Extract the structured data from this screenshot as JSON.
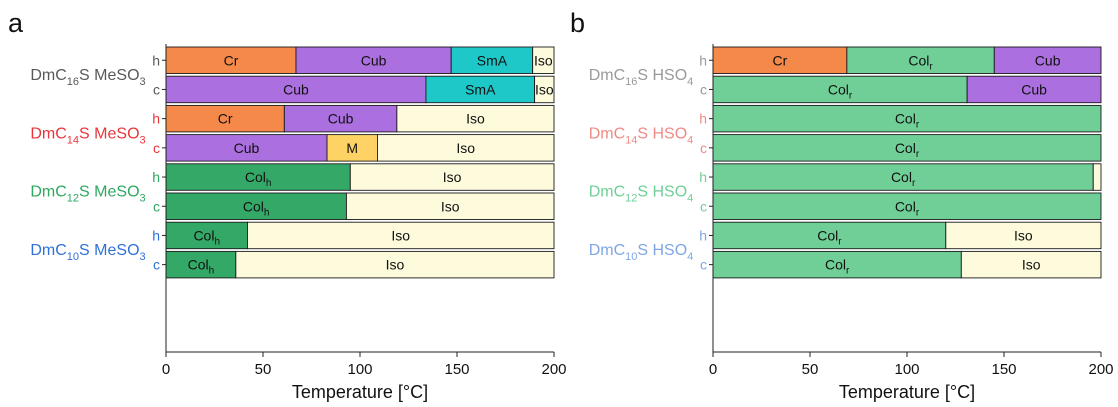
{
  "colors": {
    "Cr": "#f4894a",
    "Cub": "#ab6fdf",
    "SmA": "#1ec8c8",
    "M": "#fed265",
    "Iso": "#fdfbdc",
    "Colh": "#34a867",
    "Colr": "#6fcf97"
  },
  "chart_data": [
    {
      "type": "bar",
      "panel_label": "a",
      "xlabel": "Temperature [°C]",
      "xlim": [
        0,
        200
      ],
      "xticks": [
        0,
        50,
        100,
        150,
        200
      ],
      "groups": [
        {
          "compound": "DmC16S MeSO3",
          "color": "#595959",
          "rows": [
            {
              "label": "h",
              "segments": [
                {
                  "phase": "Cr",
                  "text": "Cr",
                  "start": 0,
                  "end": 67
                },
                {
                  "phase": "Cub",
                  "text": "Cub",
                  "start": 67,
                  "end": 147
                },
                {
                  "phase": "SmA",
                  "text": "SmA",
                  "start": 147,
                  "end": 189
                },
                {
                  "phase": "Iso",
                  "text": "Iso",
                  "start": 189,
                  "end": 200
                }
              ]
            },
            {
              "label": "c",
              "segments": [
                {
                  "phase": "Cub",
                  "text": "Cub",
                  "start": 0,
                  "end": 134
                },
                {
                  "phase": "SmA",
                  "text": "SmA",
                  "start": 134,
                  "end": 190
                },
                {
                  "phase": "Iso",
                  "text": "Iso",
                  "start": 190,
                  "end": 200
                }
              ]
            }
          ]
        },
        {
          "compound": "DmC14S MeSO3",
          "color": "#e8353b",
          "rows": [
            {
              "label": "h",
              "segments": [
                {
                  "phase": "Cr",
                  "text": "Cr",
                  "start": 0,
                  "end": 61
                },
                {
                  "phase": "Cub",
                  "text": "Cub",
                  "start": 61,
                  "end": 119
                },
                {
                  "phase": "Iso",
                  "text": "Iso",
                  "start": 119,
                  "end": 200
                }
              ]
            },
            {
              "label": "c",
              "segments": [
                {
                  "phase": "Cub",
                  "text": "Cub",
                  "start": 0,
                  "end": 83
                },
                {
                  "phase": "M",
                  "text": "M",
                  "start": 83,
                  "end": 109
                },
                {
                  "phase": "Iso",
                  "text": "Iso",
                  "start": 109,
                  "end": 200
                }
              ]
            }
          ]
        },
        {
          "compound": "DmC12S MeSO3",
          "color": "#2ea860",
          "rows": [
            {
              "label": "h",
              "segments": [
                {
                  "phase": "Colh",
                  "text": "Col",
                  "sub": "h",
                  "start": 0,
                  "end": 95
                },
                {
                  "phase": "Iso",
                  "text": "Iso",
                  "start": 95,
                  "end": 200
                }
              ]
            },
            {
              "label": "c",
              "segments": [
                {
                  "phase": "Colh",
                  "text": "Col",
                  "sub": "h",
                  "start": 0,
                  "end": 93
                },
                {
                  "phase": "Iso",
                  "text": "Iso",
                  "start": 93,
                  "end": 200
                }
              ]
            }
          ]
        },
        {
          "compound": "DmC10S MeSO3",
          "color": "#2f71d8",
          "rows": [
            {
              "label": "h",
              "segments": [
                {
                  "phase": "Colh",
                  "text": "Col",
                  "sub": "h",
                  "start": 0,
                  "end": 42
                },
                {
                  "phase": "Iso",
                  "text": "Iso",
                  "start": 42,
                  "end": 200
                }
              ]
            },
            {
              "label": "c",
              "segments": [
                {
                  "phase": "Colh",
                  "text": "Col",
                  "sub": "h",
                  "start": 0,
                  "end": 36
                },
                {
                  "phase": "Iso",
                  "text": "Iso",
                  "start": 36,
                  "end": 200
                }
              ]
            }
          ]
        }
      ]
    },
    {
      "type": "bar",
      "panel_label": "b",
      "xlabel": "Temperature [°C]",
      "xlim": [
        0,
        200
      ],
      "xticks": [
        0,
        50,
        100,
        150,
        200
      ],
      "groups": [
        {
          "compound": "DmC16S HSO4",
          "color": "#9a9a9a",
          "rows": [
            {
              "label": "h",
              "segments": [
                {
                  "phase": "Cr",
                  "text": "Cr",
                  "start": 0,
                  "end": 69
                },
                {
                  "phase": "Colr",
                  "text": "Col",
                  "sub": "r",
                  "start": 69,
                  "end": 145
                },
                {
                  "phase": "Cub",
                  "text": "Cub",
                  "start": 145,
                  "end": 200
                }
              ]
            },
            {
              "label": "c",
              "segments": [
                {
                  "phase": "Colr",
                  "text": "Col",
                  "sub": "r",
                  "start": 0,
                  "end": 131
                },
                {
                  "phase": "Cub",
                  "text": "Cub",
                  "start": 131,
                  "end": 200
                }
              ]
            }
          ]
        },
        {
          "compound": "DmC14S HSO4",
          "color": "#f08a85",
          "rows": [
            {
              "label": "h",
              "segments": [
                {
                  "phase": "Colr",
                  "text": "Col",
                  "sub": "r",
                  "start": 0,
                  "end": 200
                }
              ]
            },
            {
              "label": "c",
              "segments": [
                {
                  "phase": "Colr",
                  "text": "Col",
                  "sub": "r",
                  "start": 0,
                  "end": 200
                }
              ]
            }
          ]
        },
        {
          "compound": "DmC12S HSO4",
          "color": "#6fcf97",
          "rows": [
            {
              "label": "h",
              "segments": [
                {
                  "phase": "Colr",
                  "text": "Col",
                  "sub": "r",
                  "start": 0,
                  "end": 196
                },
                {
                  "phase": "Iso",
                  "text": "",
                  "start": 196,
                  "end": 200
                }
              ]
            },
            {
              "label": "c",
              "segments": [
                {
                  "phase": "Colr",
                  "text": "Col",
                  "sub": "r",
                  "start": 0,
                  "end": 200
                }
              ]
            }
          ]
        },
        {
          "compound": "DmC10S HSO4",
          "color": "#7fa6e3",
          "rows": [
            {
              "label": "h",
              "segments": [
                {
                  "phase": "Colr",
                  "text": "Col",
                  "sub": "r",
                  "start": 0,
                  "end": 120
                },
                {
                  "phase": "Iso",
                  "text": "Iso",
                  "start": 120,
                  "end": 200
                }
              ]
            },
            {
              "label": "c",
              "segments": [
                {
                  "phase": "Colr",
                  "text": "Col",
                  "sub": "r",
                  "start": 0,
                  "end": 128
                },
                {
                  "phase": "Iso",
                  "text": "Iso",
                  "start": 128,
                  "end": 200
                }
              ]
            }
          ]
        }
      ]
    }
  ]
}
